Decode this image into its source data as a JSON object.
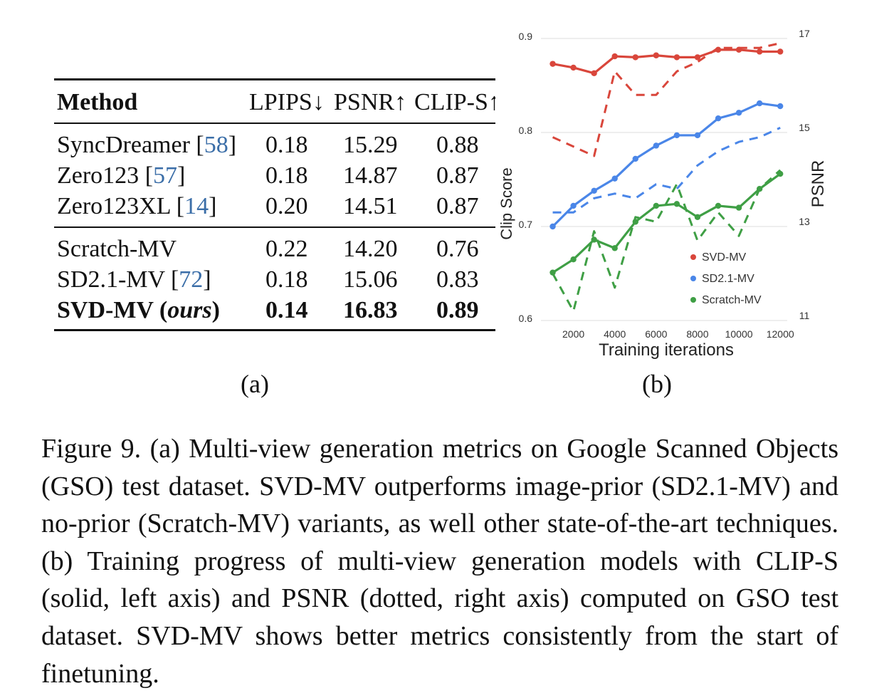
{
  "table": {
    "headers": [
      "Method",
      "LPIPS↓",
      "PSNR↑",
      "CLIP-S↑"
    ],
    "rows": [
      {
        "method": "SyncDreamer",
        "ref": "58",
        "lpips": "0.18",
        "psnr": "15.29",
        "clip": "0.88"
      },
      {
        "method": "Zero123",
        "ref": "57",
        "lpips": "0.18",
        "psnr": "14.87",
        "clip": "0.87"
      },
      {
        "method": "Zero123XL",
        "ref": "14",
        "lpips": "0.20",
        "psnr": "14.51",
        "clip": "0.87"
      },
      {
        "method": "Scratch-MV",
        "ref": "",
        "lpips": "0.22",
        "psnr": "14.20",
        "clip": "0.76"
      },
      {
        "method": "SD2.1-MV",
        "ref": "72",
        "lpips": "0.18",
        "psnr": "15.06",
        "clip": "0.83"
      },
      {
        "method_main": "SVD-MV",
        "method_ours": "ours",
        "lpips": "0.14",
        "psnr": "16.83",
        "clip": "0.89"
      }
    ]
  },
  "labels": {
    "a": "(a)",
    "b": "(b)"
  },
  "chart_data": {
    "type": "line",
    "xlabel": "Training iterations",
    "ylabel_left": "Clip Score",
    "ylabel_right": "PSNR",
    "x": [
      1000,
      2000,
      3000,
      4000,
      5000,
      6000,
      7000,
      8000,
      9000,
      10000,
      11000,
      12000
    ],
    "x_ticks": [
      "2000",
      "4000",
      "6000",
      "8000",
      "10000",
      "12000"
    ],
    "x_tick_values": [
      2000,
      4000,
      6000,
      8000,
      10000,
      12000
    ],
    "ylim_left": [
      0.6,
      0.9
    ],
    "ylim_right": [
      11,
      17
    ],
    "left_ticks": [
      "0.6",
      "0.7",
      "0.8",
      "0.9"
    ],
    "right_ticks": [
      "11",
      "13",
      "15",
      "17"
    ],
    "legend_position": "bottom-right",
    "series": [
      {
        "name": "SVD-MV",
        "color": "#d9463b",
        "clip": [
          0.873,
          0.869,
          0.863,
          0.881,
          0.88,
          0.882,
          0.88,
          0.88,
          0.888,
          0.888,
          0.886,
          0.886
        ],
        "psnr": [
          14.9,
          14.7,
          14.5,
          16.3,
          15.8,
          15.8,
          16.3,
          16.5,
          16.8,
          16.8,
          16.8,
          16.9
        ]
      },
      {
        "name": "SD2.1-MV",
        "color": "#4a86e8",
        "clip": [
          0.7,
          0.722,
          0.738,
          0.751,
          0.772,
          0.786,
          0.797,
          0.797,
          0.815,
          0.821,
          0.831,
          0.828
        ],
        "psnr": [
          13.3,
          13.3,
          13.6,
          13.7,
          13.6,
          13.9,
          13.8,
          14.3,
          14.6,
          14.8,
          14.9,
          15.1
        ]
      },
      {
        "name": "Scratch-MV",
        "color": "#3f9f45",
        "clip": [
          0.651,
          0.665,
          0.686,
          0.677,
          0.705,
          0.722,
          0.724,
          0.71,
          0.722,
          0.72,
          0.74,
          0.756
        ],
        "psnr": [
          12.0,
          11.2,
          12.9,
          11.7,
          13.2,
          13.1,
          13.9,
          12.7,
          13.3,
          12.8,
          13.8,
          14.2
        ]
      }
    ]
  },
  "caption": "Figure 9. (a) Multi-view generation metrics on Google Scanned Objects (GSO) test dataset. SVD-MV outperforms image-prior (SD2.1-MV) and no-prior (Scratch-MV) variants, as well other state-of-the-art techniques. (b) Training progress of multi-view generation models with CLIP-S (solid, left axis) and PSNR (dotted, right axis) computed on GSO test dataset. SVD-MV shows better metrics consistently from the start of finetuning."
}
